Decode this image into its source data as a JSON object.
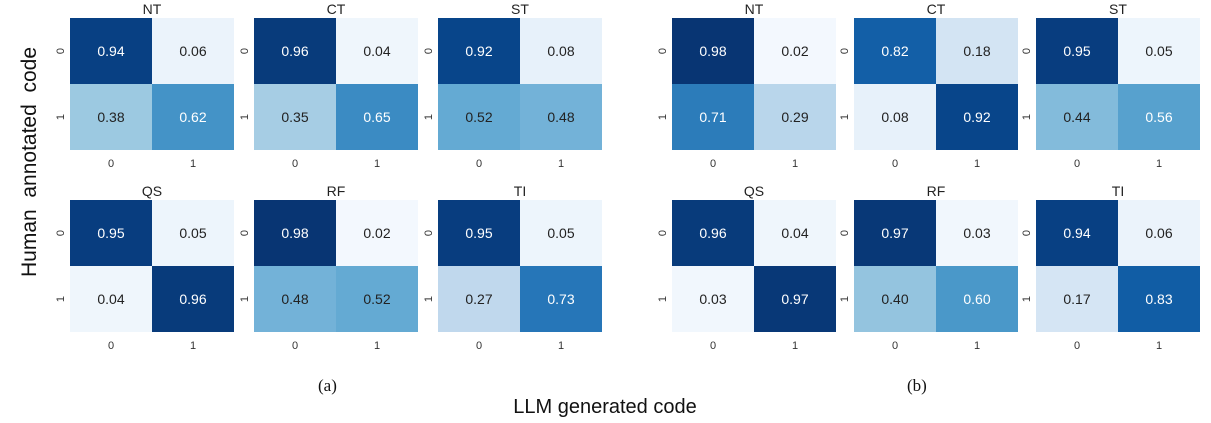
{
  "figure": {
    "ylabel": "Human  annotated  code",
    "xlabel": "LLM generated code",
    "captions": [
      "(a)",
      "(b)"
    ]
  },
  "chart_data": [
    {
      "type": "heatmap",
      "panel": "(a)",
      "title": "NT",
      "x_ticks": [
        "0",
        "1"
      ],
      "y_ticks": [
        "0",
        "1"
      ],
      "values": [
        [
          0.94,
          0.06
        ],
        [
          0.38,
          0.62
        ]
      ]
    },
    {
      "type": "heatmap",
      "panel": "(a)",
      "title": "CT",
      "x_ticks": [
        "0",
        "1"
      ],
      "y_ticks": [
        "0",
        "1"
      ],
      "values": [
        [
          0.96,
          0.04
        ],
        [
          0.35,
          0.65
        ]
      ]
    },
    {
      "type": "heatmap",
      "panel": "(a)",
      "title": "ST",
      "x_ticks": [
        "0",
        "1"
      ],
      "y_ticks": [
        "0",
        "1"
      ],
      "values": [
        [
          0.92,
          0.08
        ],
        [
          0.52,
          0.48
        ]
      ]
    },
    {
      "type": "heatmap",
      "panel": "(a)",
      "title": "QS",
      "x_ticks": [
        "0",
        "1"
      ],
      "y_ticks": [
        "0",
        "1"
      ],
      "values": [
        [
          0.95,
          0.05
        ],
        [
          0.04,
          0.96
        ]
      ]
    },
    {
      "type": "heatmap",
      "panel": "(a)",
      "title": "RF",
      "x_ticks": [
        "0",
        "1"
      ],
      "y_ticks": [
        "0",
        "1"
      ],
      "values": [
        [
          0.98,
          0.02
        ],
        [
          0.48,
          0.52
        ]
      ]
    },
    {
      "type": "heatmap",
      "panel": "(a)",
      "title": "TI",
      "x_ticks": [
        "0",
        "1"
      ],
      "y_ticks": [
        "0",
        "1"
      ],
      "values": [
        [
          0.95,
          0.05
        ],
        [
          0.27,
          0.73
        ]
      ]
    },
    {
      "type": "heatmap",
      "panel": "(b)",
      "title": "NT",
      "x_ticks": [
        "0",
        "1"
      ],
      "y_ticks": [
        "0",
        "1"
      ],
      "values": [
        [
          0.98,
          0.02
        ],
        [
          0.71,
          0.29
        ]
      ]
    },
    {
      "type": "heatmap",
      "panel": "(b)",
      "title": "CT",
      "x_ticks": [
        "0",
        "1"
      ],
      "y_ticks": [
        "0",
        "1"
      ],
      "values": [
        [
          0.82,
          0.18
        ],
        [
          0.08,
          0.92
        ]
      ]
    },
    {
      "type": "heatmap",
      "panel": "(b)",
      "title": "ST",
      "x_ticks": [
        "0",
        "1"
      ],
      "y_ticks": [
        "0",
        "1"
      ],
      "values": [
        [
          0.95,
          0.05
        ],
        [
          0.44,
          0.56
        ]
      ]
    },
    {
      "type": "heatmap",
      "panel": "(b)",
      "title": "QS",
      "x_ticks": [
        "0",
        "1"
      ],
      "y_ticks": [
        "0",
        "1"
      ],
      "values": [
        [
          0.96,
          0.04
        ],
        [
          0.03,
          0.97
        ]
      ]
    },
    {
      "type": "heatmap",
      "panel": "(b)",
      "title": "RF",
      "x_ticks": [
        "0",
        "1"
      ],
      "y_ticks": [
        "0",
        "1"
      ],
      "values": [
        [
          0.97,
          0.03
        ],
        [
          0.4,
          0.6
        ]
      ]
    },
    {
      "type": "heatmap",
      "panel": "(b)",
      "title": "TI",
      "x_ticks": [
        "0",
        "1"
      ],
      "y_ticks": [
        "0",
        "1"
      ],
      "values": [
        [
          0.94,
          0.06
        ],
        [
          0.17,
          0.83
        ]
      ]
    }
  ],
  "colors": {
    "colormap": [
      "#f7fbff",
      "#deebf7",
      "#c6dbef",
      "#9ecae1",
      "#6baed6",
      "#4292c6",
      "#2171b5",
      "#08519c",
      "#08306b"
    ],
    "text_dark": "#222222",
    "text_light": "#ffffff"
  }
}
